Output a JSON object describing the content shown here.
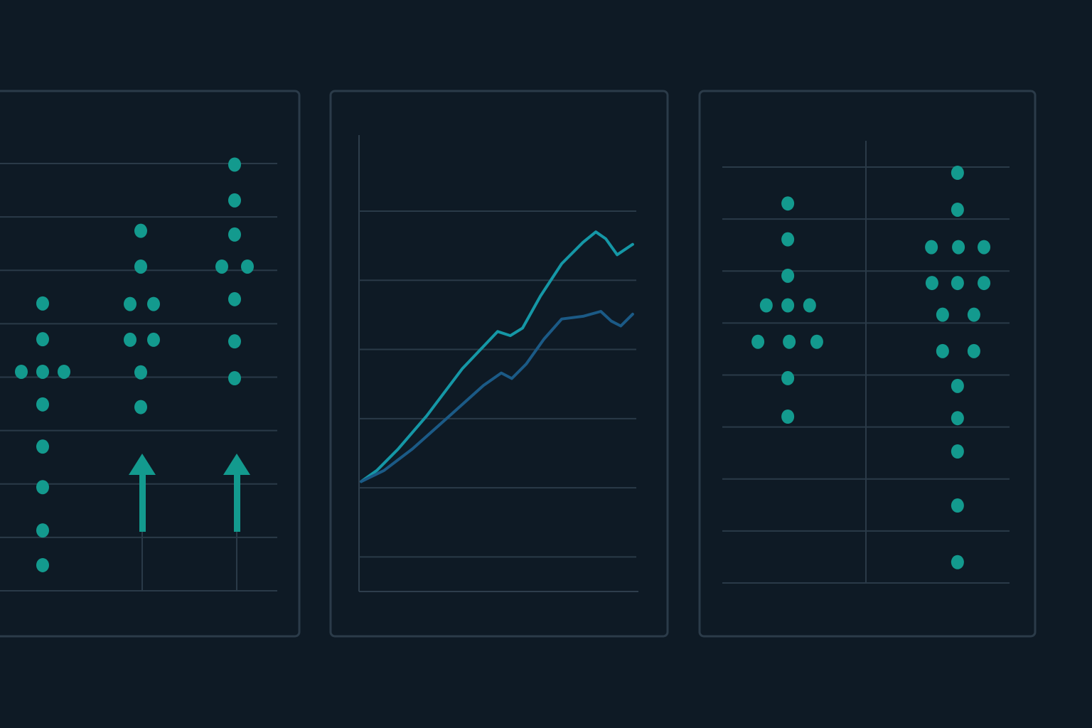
{
  "chart_data": [
    {
      "type": "scatter",
      "color": "#139a8e",
      "grid": true,
      "xlim": [
        0,
        13
      ],
      "ylim": [
        0,
        8
      ],
      "yticks": [
        0,
        1,
        2,
        3,
        4,
        5,
        6,
        7,
        8
      ],
      "x": [
        2,
        2,
        1,
        2,
        3,
        2,
        2,
        2,
        2,
        2,
        6.6,
        6.6,
        6.1,
        7.2,
        6.1,
        7.2,
        6.6,
        6.6,
        11,
        11,
        11,
        10.4,
        11.6,
        11,
        11,
        11
      ],
      "values": [
        5.38,
        4.71,
        4.1,
        4.1,
        4.1,
        3.49,
        2.7,
        1.94,
        1.13,
        0.48,
        6.74,
        6.07,
        5.37,
        5.37,
        4.7,
        4.7,
        4.09,
        3.44,
        7.98,
        7.31,
        6.67,
        6.07,
        6.07,
        5.46,
        4.67,
        3.98
      ]
    },
    {
      "type": "line",
      "grid": true,
      "xlim": [
        0,
        10
      ],
      "ylim": [
        -0.5,
        6.1
      ],
      "yticks": [
        0,
        1,
        2,
        3,
        4,
        5
      ],
      "series": [
        {
          "color": "#1597a6",
          "x": [
            0.08,
            0.64,
            1.41,
            2.44,
            3.72,
            5.0,
            5.46,
            5.9,
            6.54,
            7.31,
            8.08,
            8.54,
            8.9,
            9.31,
            9.87
          ],
          "values": [
            1.09,
            1.25,
            1.56,
            2.04,
            2.72,
            3.26,
            3.2,
            3.31,
            3.77,
            4.24,
            4.55,
            4.7,
            4.6,
            4.37,
            4.52
          ]
        },
        {
          "color": "#1b5a86",
          "x": [
            0.08,
            0.9,
            1.92,
            3.21,
            4.49,
            5.13,
            5.51,
            6.03,
            6.67,
            7.31,
            8.08,
            8.72,
            9.1,
            9.44,
            9.87
          ],
          "values": [
            1.09,
            1.25,
            1.56,
            2.02,
            2.48,
            2.66,
            2.58,
            2.79,
            3.15,
            3.44,
            3.48,
            3.55,
            3.41,
            3.34,
            3.51
          ]
        }
      ]
    },
    {
      "type": "scatter",
      "color": "#139a8e",
      "grid": true,
      "xlim": [
        0,
        10
      ],
      "ylim": [
        0,
        8
      ],
      "yticks": [
        0,
        1,
        2,
        3,
        4,
        5,
        6,
        7,
        8
      ],
      "xticks": [
        5
      ],
      "x": [
        2.28,
        2.28,
        2.28,
        1.53,
        2.28,
        3.04,
        1.24,
        2.33,
        3.29,
        2.28,
        2.28,
        8.19,
        8.19,
        7.28,
        8.22,
        9.11,
        7.3,
        8.19,
        9.11,
        7.67,
        8.76,
        7.67,
        8.76,
        8.19,
        8.19,
        8.19,
        8.19,
        8.19
      ],
      "values": [
        7.3,
        6.61,
        5.91,
        5.34,
        5.34,
        5.34,
        4.64,
        4.64,
        4.64,
        3.94,
        3.2,
        7.89,
        7.18,
        6.46,
        6.46,
        6.46,
        5.77,
        5.77,
        5.77,
        5.16,
        5.16,
        4.46,
        4.46,
        3.79,
        3.17,
        2.53,
        1.49,
        0.4
      ]
    }
  ]
}
